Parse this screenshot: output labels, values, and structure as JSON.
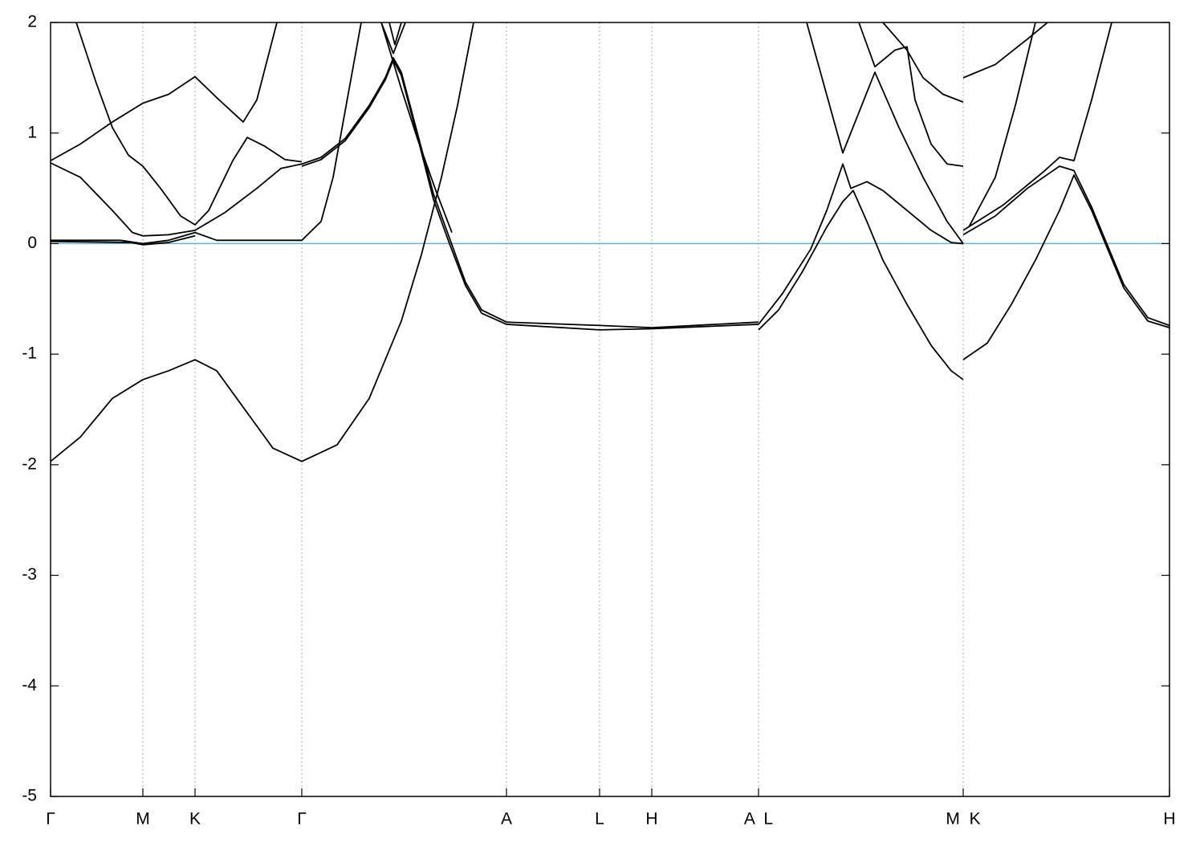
{
  "chart_data": {
    "type": "line",
    "xlim": [
      0,
      13.94
    ],
    "ylim": [
      -5,
      2
    ],
    "yticks": [
      -5,
      -4,
      -3,
      -2,
      -1,
      0,
      1,
      2
    ],
    "xticks": [
      {
        "value": 0,
        "label": "Γ"
      },
      {
        "value": 1.15,
        "label": "M"
      },
      {
        "value": 1.8,
        "label": "K"
      },
      {
        "value": 3.13,
        "label": "Γ"
      },
      {
        "value": 5.68,
        "label": "A"
      },
      {
        "value": 6.84,
        "label": "L"
      },
      {
        "value": 7.49,
        "label": "H"
      },
      {
        "value": 8.82,
        "label": "A  L"
      },
      {
        "value": 11.37,
        "label": "M  K"
      },
      {
        "value": 13.94,
        "label": "H"
      }
    ],
    "grid": true,
    "line_color": "#000000",
    "hline": {
      "value": 0,
      "color": "#5fb8c8"
    },
    "series": [
      {
        "x": [
          0,
          0.37,
          0.77,
          1.15,
          1.47,
          1.8,
          2.07,
          2.47,
          2.77,
          3.13,
          3.57,
          3.97,
          4.37,
          4.62,
          4.87,
          5.07,
          5.27
        ],
        "values": [
          -1.97,
          -1.75,
          -1.4,
          -1.23,
          -1.15,
          -1.05,
          -1.15,
          -1.55,
          -1.85,
          -1.97,
          -1.82,
          -1.4,
          -0.7,
          -0.1,
          0.6,
          1.25,
          2.0
        ]
      },
      {
        "x": [
          0,
          0.87,
          1.15,
          1.47,
          1.8,
          2.07,
          3.13,
          3.37,
          3.52,
          3.67,
          3.82,
          3.87
        ],
        "values": [
          0.03,
          0.03,
          0.0,
          0.03,
          0.1,
          0.03,
          0.03,
          0.2,
          0.6,
          1.2,
          1.8,
          2.0
        ]
      },
      {
        "x": [
          0,
          1.0,
          1.15,
          1.47,
          1.8
        ],
        "values": [
          0.02,
          0.01,
          -0.01,
          0.01,
          0.07
        ]
      },
      {
        "x": [
          0,
          0.37,
          0.77,
          1.02,
          1.15,
          1.47,
          1.8,
          2.17,
          2.57,
          2.87,
          3.13,
          3.37,
          3.67,
          3.97,
          4.17,
          4.27,
          4.37,
          4.57,
          4.77,
          4.97,
          5.17,
          5.37,
          5.68,
          6.84,
          7.49,
          8.82
        ],
        "values": [
          0.73,
          0.6,
          0.3,
          0.1,
          0.07,
          0.08,
          0.12,
          0.28,
          0.5,
          0.68,
          0.72,
          0.78,
          0.95,
          1.25,
          1.5,
          1.68,
          1.55,
          1.0,
          0.45,
          0.05,
          -0.35,
          -0.6,
          -0.71,
          -0.74,
          -0.76,
          -0.71
        ]
      },
      {
        "x": [
          3.13,
          3.37,
          3.67,
          3.97,
          4.17,
          4.27,
          4.37,
          4.57,
          4.77,
          4.97,
          5.17,
          5.37,
          5.68,
          6.84,
          7.49,
          8.82
        ],
        "values": [
          0.7,
          0.76,
          0.93,
          1.23,
          1.48,
          1.66,
          1.52,
          0.97,
          0.4,
          0.0,
          -0.38,
          -0.63,
          -0.73,
          -0.78,
          -0.77,
          -0.73
        ]
      },
      {
        "x": [
          0,
          0.37,
          0.77,
          1.15,
          1.47,
          1.8,
          2.07,
          2.4,
          2.57,
          2.82
        ],
        "values": [
          0.75,
          0.9,
          1.1,
          1.27,
          1.35,
          1.51,
          1.32,
          1.1,
          1.3,
          2.0
        ]
      },
      {
        "x": [
          0.32,
          0.57,
          0.77,
          0.97,
          1.15,
          1.37,
          1.62,
          1.8,
          1.97,
          2.27,
          2.45,
          2.67,
          2.92,
          3.13
        ],
        "values": [
          2.0,
          1.45,
          1.05,
          0.8,
          0.7,
          0.5,
          0.25,
          0.17,
          0.3,
          0.75,
          0.96,
          0.88,
          0.76,
          0.74
        ]
      },
      {
        "x": [
          4.12,
          4.27,
          4.42
        ],
        "values": [
          2.0,
          1.72,
          2.0
        ]
      },
      {
        "x": [
          4.22,
          4.29,
          4.37
        ],
        "values": [
          2.0,
          1.8,
          2.0
        ]
      },
      {
        "x": [
          4.12,
          4.37,
          4.57,
          4.8,
          5.0
        ],
        "values": [
          2.0,
          1.4,
          0.95,
          0.48,
          0.1
        ]
      },
      {
        "x": [
          8.82,
          9.07,
          9.37,
          9.67,
          9.87,
          10.0,
          10.17,
          10.37,
          10.67,
          10.97,
          11.22,
          11.37
        ],
        "values": [
          -0.78,
          -0.6,
          -0.25,
          0.15,
          0.38,
          0.48,
          0.2,
          -0.15,
          -0.55,
          -0.92,
          -1.15,
          -1.23
        ]
      },
      {
        "x": [
          8.82,
          9.12,
          9.47,
          9.67,
          9.87,
          9.97,
          10.17,
          10.37,
          10.67,
          10.97,
          11.22,
          11.37
        ],
        "values": [
          -0.73,
          -0.45,
          -0.05,
          0.3,
          0.72,
          0.5,
          0.56,
          0.48,
          0.3,
          0.12,
          0.01,
          0.0
        ]
      },
      {
        "x": [
          9.42,
          9.87,
          10.27,
          10.57,
          10.87,
          11.17,
          11.37
        ],
        "values": [
          2.0,
          0.82,
          1.55,
          1.05,
          0.6,
          0.2,
          0.0
        ]
      },
      {
        "x": [
          10.07,
          10.27,
          10.52,
          10.67,
          10.77,
          10.97,
          11.17,
          11.37
        ],
        "values": [
          2.0,
          1.6,
          1.75,
          1.78,
          1.3,
          0.9,
          0.72,
          0.7
        ]
      },
      {
        "x": [
          10.37,
          10.67,
          10.87,
          11.12,
          11.37
        ],
        "values": [
          2.0,
          1.75,
          1.5,
          1.35,
          1.28
        ]
      },
      {
        "x": [
          11.37,
          11.67,
          11.97,
          12.27,
          12.57,
          12.75,
          12.97,
          13.17,
          13.37,
          13.67,
          13.94
        ],
        "values": [
          -1.05,
          -0.9,
          -0.55,
          -0.15,
          0.3,
          0.62,
          0.3,
          -0.05,
          -0.4,
          -0.7,
          -0.76
        ]
      },
      {
        "x": [
          11.37,
          11.77,
          12.17,
          12.57,
          12.75,
          12.97,
          13.17,
          13.37,
          13.67,
          13.94
        ],
        "values": [
          0.08,
          0.25,
          0.5,
          0.7,
          0.66,
          0.33,
          -0.02,
          -0.37,
          -0.67,
          -0.74
        ]
      },
      {
        "x": [
          11.37,
          11.87,
          12.37,
          12.57,
          12.75,
          12.97,
          13.22
        ],
        "values": [
          0.12,
          0.35,
          0.65,
          0.78,
          0.75,
          1.3,
          2.0
        ]
      },
      {
        "x": [
          11.44,
          11.77,
          12.02,
          12.27
        ],
        "values": [
          0.15,
          0.6,
          1.25,
          2.0
        ]
      },
      {
        "x": [
          11.37,
          11.77,
          12.17,
          12.42
        ],
        "values": [
          1.5,
          1.62,
          1.85,
          2.0
        ]
      }
    ]
  }
}
